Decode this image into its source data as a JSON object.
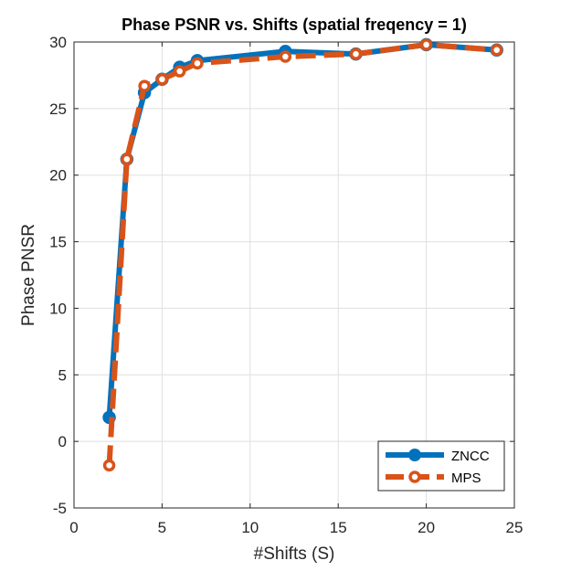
{
  "chart_data": {
    "type": "line",
    "title": "Phase PSNR vs. Shifts (spatial freqency = 1)",
    "xlabel": "#Shifts (S)",
    "ylabel": "Phase PNSR",
    "xlim": [
      0,
      25
    ],
    "ylim": [
      -5,
      30
    ],
    "xticks": [
      0,
      5,
      10,
      15,
      20,
      25
    ],
    "yticks": [
      -5,
      0,
      5,
      10,
      15,
      20,
      25,
      30
    ],
    "grid": true,
    "legend_position": "bottom-right",
    "series": [
      {
        "name": "ZNCC",
        "color": "#0072BD",
        "line_style": "solid",
        "marker": "filled-circle",
        "x": [
          2,
          3,
          4,
          5,
          6,
          7,
          12,
          16,
          20,
          24
        ],
        "y": [
          1.8,
          21.2,
          26.2,
          27.2,
          28.1,
          28.6,
          29.3,
          29.1,
          29.8,
          29.4
        ]
      },
      {
        "name": "MPS",
        "color": "#D95319",
        "line_style": "dashed",
        "marker": "open-circle",
        "x": [
          2,
          3,
          4,
          5,
          6,
          7,
          12,
          16,
          20,
          24
        ],
        "y": [
          -1.8,
          21.2,
          26.7,
          27.2,
          27.8,
          28.4,
          28.9,
          29.1,
          29.8,
          29.4
        ]
      }
    ]
  }
}
